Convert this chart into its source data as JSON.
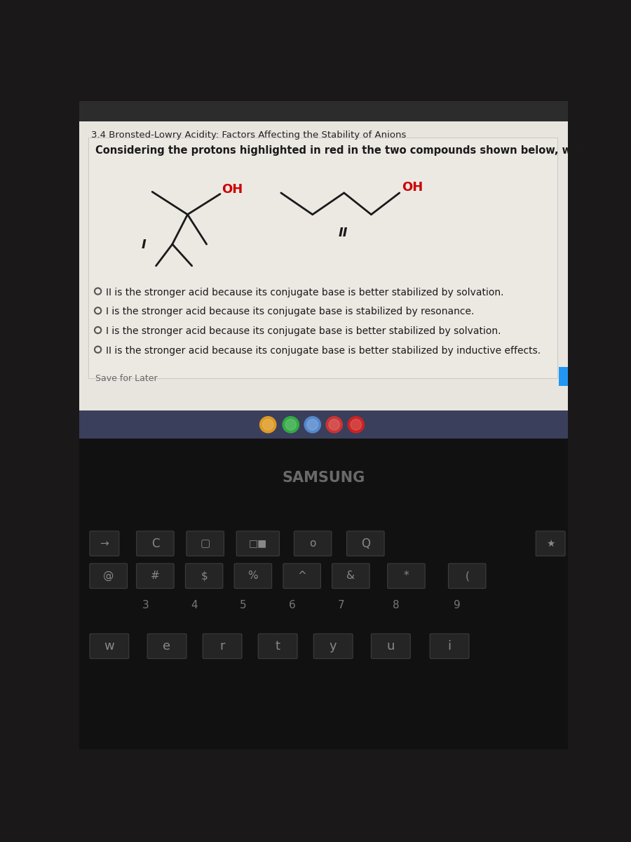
{
  "title": "3.4 Bronsted-Lowry Acidity: Factors Affecting the Stability of Anions",
  "question": "Considering the protons highlighted in red in the two compounds shown below, which compound is more acidic.",
  "options": [
    "II is the stronger acid because its conjugate base is better stabilized by solvation.",
    "I is the stronger acid because its conjugate base is stabilized by resonance.",
    "I is the stronger acid because its conjugate base is better stabilized by solvation.",
    "II is the stronger acid because its conjugate base is better stabilized by inductive effects."
  ],
  "save_text": "Save for Later",
  "bg_top": "#2c2c2c",
  "bg_content": "#e8e5df",
  "text_color": "#1a1a1a",
  "title_color": "#222222",
  "red_color": "#cc0000",
  "option_circle_color": "#555555",
  "samsung_text": "SAMSUNG",
  "taskbar_bg": "#3a3f5c",
  "keyboard_bg": "#111111",
  "label_I": "I",
  "label_II": "II",
  "oh_label": "OH",
  "blue_btn_color": "#2196F3",
  "line_color": "#1a1a1a",
  "key_face": "#252525",
  "key_edge": "#3d3d3d",
  "key_text": "#888888"
}
